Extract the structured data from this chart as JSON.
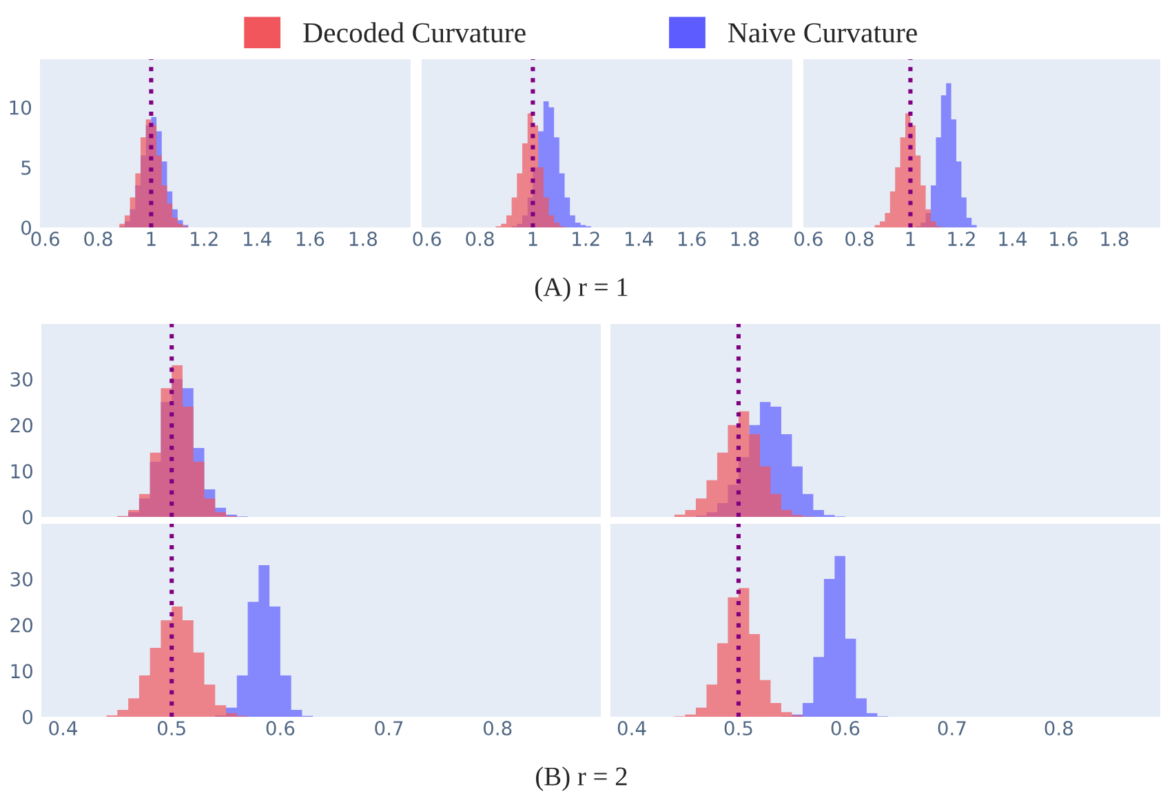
{
  "chart_data": [
    {
      "type": "histogram",
      "legend": "top",
      "xlim": [
        0.58,
        1.98
      ],
      "ylim": [
        0,
        14
      ],
      "xticks": [
        0.6,
        0.8,
        1,
        1.2,
        1.4,
        1.6,
        1.8
      ],
      "yticks": [
        0,
        5,
        10
      ],
      "grid": false,
      "bins": [
        0.86,
        0.88,
        0.9,
        0.92,
        0.94,
        0.96,
        0.98,
        1.0,
        1.02,
        1.04,
        1.06,
        1.08,
        1.1,
        1.12,
        1.14,
        1.16,
        1.18,
        1.2,
        1.22,
        1.24,
        1.26
      ],
      "ref_lines": [
        {
          "axis": "x",
          "value": 1,
          "color": "#800080",
          "line_style": "dotted"
        }
      ],
      "series": [
        {
          "name": "Naive Curvature",
          "color": "#5c5cff",
          "values": [
            0,
            0.1,
            0.5,
            1.5,
            3.5,
            6,
            8.5,
            9.2,
            8,
            5.5,
            3,
            1.5,
            0.6,
            0.2,
            0,
            0,
            0,
            0,
            0,
            0
          ]
        },
        {
          "name": "Decoded Curvature",
          "color": "#f0565c",
          "values": [
            0,
            0.3,
            1,
            2.5,
            4.5,
            7.5,
            9,
            8.5,
            6,
            3.5,
            2,
            0.8,
            0.3,
            0.1,
            0,
            0,
            0,
            0,
            0,
            0
          ]
        }
      ]
    },
    {
      "type": "histogram",
      "tick_labels": "x",
      "xlim": [
        0.58,
        1.98
      ],
      "ylim": [
        0,
        14
      ],
      "xticks": [
        0.6,
        0.8,
        1,
        1.2,
        1.4,
        1.6,
        1.8
      ],
      "yticks": [
        0,
        5,
        10
      ],
      "grid": false,
      "bins": [
        0.86,
        0.88,
        0.9,
        0.92,
        0.94,
        0.96,
        0.98,
        1.0,
        1.02,
        1.04,
        1.06,
        1.08,
        1.1,
        1.12,
        1.14,
        1.16,
        1.18,
        1.2,
        1.22,
        1.24,
        1.26
      ],
      "ref_lines": [
        {
          "axis": "x",
          "value": 1,
          "color": "#800080",
          "line_style": "dotted"
        }
      ],
      "series": [
        {
          "color": "#5c5cff",
          "values": [
            0,
            0,
            0,
            0.1,
            0.3,
            1,
            2.5,
            5,
            8,
            10.5,
            10,
            7.5,
            4.5,
            2.5,
            1,
            0.4,
            0.2,
            0.1,
            0,
            0
          ]
        },
        {
          "color": "#f0565c",
          "values": [
            0.1,
            0.3,
            1,
            2.5,
            4.5,
            7,
            9.5,
            8.5,
            5,
            2.5,
            1,
            0.4,
            0.1,
            0,
            0,
            0,
            0,
            0,
            0,
            0
          ]
        }
      ]
    },
    {
      "type": "histogram",
      "tick_labels": "x",
      "xlim": [
        0.58,
        1.98
      ],
      "ylim": [
        0,
        14
      ],
      "xticks": [
        0.6,
        0.8,
        1,
        1.2,
        1.4,
        1.6,
        1.8
      ],
      "yticks": [
        0,
        5,
        10
      ],
      "grid": false,
      "annotations": [
        "(A) r = 1"
      ],
      "bins": [
        0.86,
        0.88,
        0.9,
        0.92,
        0.94,
        0.96,
        0.98,
        1.0,
        1.02,
        1.04,
        1.06,
        1.08,
        1.1,
        1.12,
        1.14,
        1.16,
        1.18,
        1.2,
        1.22,
        1.24,
        1.26
      ],
      "ref_lines": [
        {
          "axis": "x",
          "value": 1,
          "color": "#800080",
          "line_style": "dotted"
        }
      ],
      "series": [
        {
          "color": "#5c5cff",
          "values": [
            0,
            0,
            0,
            0,
            0,
            0,
            0,
            0,
            0.1,
            0.4,
            1.2,
            3.5,
            7.5,
            11,
            12,
            9,
            5.5,
            2.5,
            0.8,
            0.2
          ]
        },
        {
          "color": "#f0565c",
          "values": [
            0.2,
            0.5,
            1.2,
            3,
            5,
            7.5,
            9.5,
            8.5,
            6,
            3.5,
            1.5,
            0.5,
            0.1,
            0,
            0,
            0,
            0,
            0,
            0,
            0
          ]
        }
      ]
    },
    {
      "type": "histogram",
      "tick_labels": "y",
      "xlim": [
        0.38,
        0.895
      ],
      "ylim": [
        0,
        42
      ],
      "xticks": [
        0.4,
        0.5,
        0.6,
        0.7,
        0.8
      ],
      "yticks": [
        0,
        10,
        20,
        30
      ],
      "grid": false,
      "bins": [
        0.44,
        0.45,
        0.46,
        0.47,
        0.48,
        0.49,
        0.5,
        0.51,
        0.52,
        0.53,
        0.54,
        0.55,
        0.56,
        0.57,
        0.58,
        0.59,
        0.6,
        0.61,
        0.62,
        0.63,
        0.64
      ],
      "ref_lines": [
        {
          "axis": "x",
          "value": 0.5,
          "color": "#800080",
          "line_style": "dotted"
        }
      ],
      "series": [
        {
          "color": "#5c5cff",
          "values": [
            0,
            0.1,
            1,
            4,
            12,
            25,
            30,
            28,
            15,
            6,
            2,
            0.5,
            0.1,
            0,
            0,
            0,
            0,
            0,
            0,
            0
          ]
        },
        {
          "color": "#f0565c",
          "values": [
            0,
            0.2,
            1.5,
            5,
            14,
            28,
            33,
            24,
            12,
            4,
            1,
            0.2,
            0,
            0,
            0,
            0,
            0,
            0,
            0,
            0
          ]
        }
      ]
    },
    {
      "type": "histogram",
      "tick_labels": false,
      "xlim": [
        0.38,
        0.895
      ],
      "ylim": [
        0,
        42
      ],
      "xticks": [
        0.4,
        0.5,
        0.6,
        0.7,
        0.8
      ],
      "yticks": [
        0,
        10,
        20,
        30
      ],
      "grid": false,
      "bins": [
        0.44,
        0.45,
        0.46,
        0.47,
        0.48,
        0.49,
        0.5,
        0.51,
        0.52,
        0.53,
        0.54,
        0.55,
        0.56,
        0.57,
        0.58,
        0.59,
        0.6,
        0.61,
        0.62,
        0.63,
        0.64
      ],
      "ref_lines": [
        {
          "axis": "x",
          "value": 0.5,
          "color": "#800080",
          "line_style": "dotted"
        }
      ],
      "series": [
        {
          "color": "#5c5cff",
          "values": [
            0,
            0,
            0.3,
            1,
            3,
            7,
            13,
            20,
            25,
            24,
            18,
            11,
            5,
            1.5,
            0.4,
            0.1,
            0,
            0,
            0,
            0
          ]
        },
        {
          "color": "#f0565c",
          "values": [
            0.5,
            1.5,
            4,
            8,
            14,
            20,
            23,
            18,
            11,
            5,
            1.5,
            0.4,
            0.1,
            0,
            0,
            0,
            0,
            0,
            0,
            0
          ]
        }
      ]
    },
    {
      "type": "histogram",
      "xlim": [
        0.38,
        0.895
      ],
      "ylim": [
        0,
        42
      ],
      "xticks": [
        0.4,
        0.5,
        0.6,
        0.7,
        0.8
      ],
      "yticks": [
        0,
        10,
        20,
        30
      ],
      "grid": false,
      "bins": [
        0.44,
        0.45,
        0.46,
        0.47,
        0.48,
        0.49,
        0.5,
        0.51,
        0.52,
        0.53,
        0.54,
        0.55,
        0.56,
        0.57,
        0.58,
        0.59,
        0.6,
        0.61,
        0.62,
        0.63,
        0.64
      ],
      "ref_lines": [
        {
          "axis": "x",
          "value": 0.5,
          "color": "#800080",
          "line_style": "dotted"
        }
      ],
      "series": [
        {
          "color": "#5c5cff",
          "values": [
            0,
            0,
            0,
            0,
            0,
            0,
            0,
            0,
            0,
            0,
            0.3,
            2,
            9,
            25,
            33,
            24,
            9,
            1.5,
            0.2,
            0
          ]
        },
        {
          "color": "#f0565c",
          "values": [
            0.3,
            1.5,
            4,
            9,
            15,
            21,
            24,
            21,
            14,
            7,
            2.5,
            0.8,
            0.2,
            0,
            0,
            0,
            0,
            0,
            0,
            0
          ]
        }
      ]
    },
    {
      "type": "histogram",
      "tick_labels": "x",
      "xlim": [
        0.38,
        0.895
      ],
      "ylim": [
        0,
        42
      ],
      "xticks": [
        0.4,
        0.5,
        0.6,
        0.7,
        0.8
      ],
      "yticks": [
        0,
        10,
        20,
        30
      ],
      "grid": false,
      "annotations": [
        "(B) r = 2"
      ],
      "bins": [
        0.44,
        0.45,
        0.46,
        0.47,
        0.48,
        0.49,
        0.5,
        0.51,
        0.52,
        0.53,
        0.54,
        0.55,
        0.56,
        0.57,
        0.58,
        0.59,
        0.6,
        0.61,
        0.62,
        0.63,
        0.64
      ],
      "ref_lines": [
        {
          "axis": "x",
          "value": 0.5,
          "color": "#800080",
          "line_style": "dotted"
        }
      ],
      "series": [
        {
          "color": "#5c5cff",
          "values": [
            0,
            0,
            0,
            0,
            0,
            0,
            0,
            0,
            0,
            0,
            0.1,
            0.5,
            3,
            13,
            30,
            35,
            17,
            4,
            0.8,
            0.1
          ]
        },
        {
          "color": "#f0565c",
          "values": [
            0.1,
            0.5,
            2,
            7,
            16,
            26,
            28,
            18,
            8,
            3,
            1,
            0.3,
            0,
            0,
            0,
            0,
            0,
            0,
            0,
            0
          ]
        }
      ]
    }
  ]
}
